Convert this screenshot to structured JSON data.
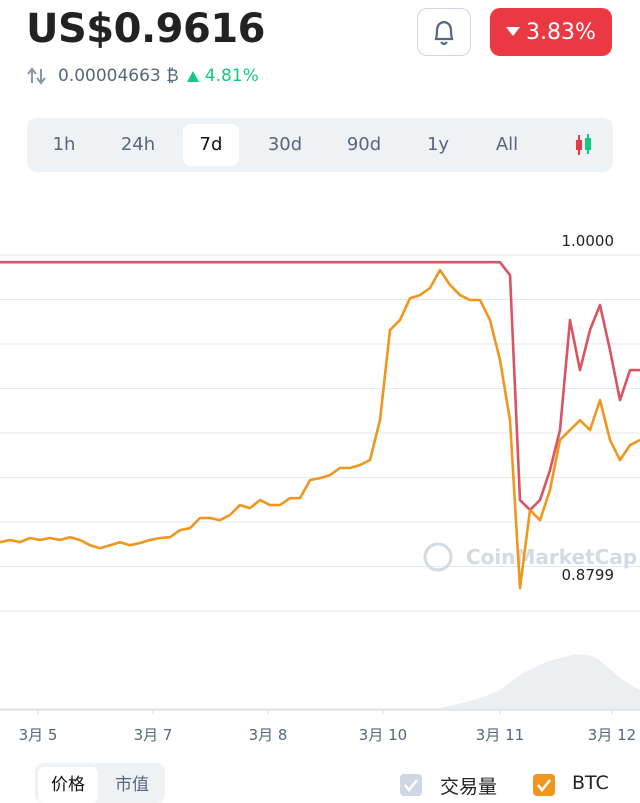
{
  "header": {
    "price": "US$0.9616",
    "btc_price": "0.00004663 ₿",
    "btc_change": "4.81%",
    "usd_change": "3.83%"
  },
  "ranges": [
    "1h",
    "24h",
    "7d",
    "30d",
    "90d",
    "1y",
    "All"
  ],
  "selected_range": 2,
  "bottom_tabs": [
    "价格",
    "市值"
  ],
  "watermark": "CoinMarketCap",
  "chart_data": {
    "type": "line",
    "x": [
      0,
      1,
      2,
      3,
      4,
      5,
      6,
      7,
      8,
      9,
      10,
      11,
      12,
      13,
      14,
      15,
      16,
      17,
      18,
      19,
      20,
      21,
      22,
      23,
      24,
      25,
      26,
      27,
      28,
      29,
      30,
      31,
      32,
      33,
      34,
      35,
      36,
      37,
      38,
      39,
      40,
      41,
      42,
      43,
      44,
      45,
      46,
      47,
      48,
      49,
      50,
      51,
      52,
      53,
      54,
      55,
      56,
      57,
      58,
      59,
      60,
      61,
      62,
      63,
      64
    ],
    "xlim": [
      0,
      64
    ],
    "xticks": [
      {
        "value": 3.8,
        "label": "3月 5"
      },
      {
        "value": 15.3,
        "label": "3月 7"
      },
      {
        "value": 26.8,
        "label": "3月 8"
      },
      {
        "value": 38.3,
        "label": "3月 10"
      },
      {
        "value": 50,
        "label": "3月 11"
      },
      {
        "value": 61.2,
        "label": "3月 12"
      }
    ],
    "ylim": [
      0.861,
      1.0102
    ],
    "yticks": [
      {
        "value": 1.0,
        "label": "1.0000"
      },
      {
        "value": 0.8799,
        "label": "0.8799"
      }
    ],
    "series": [
      {
        "color": "#db5260",
        "values": [
          0.9985,
          0.9985,
          0.9985,
          0.9985,
          0.9985,
          0.9985,
          0.9985,
          0.9985,
          0.9985,
          0.9985,
          0.9985,
          0.9985,
          0.9985,
          0.9985,
          0.9985,
          0.9985,
          0.9985,
          0.9985,
          0.9985,
          0.9985,
          0.9985,
          0.9985,
          0.9985,
          0.9985,
          0.9985,
          0.9985,
          0.9985,
          0.9985,
          0.9985,
          0.9985,
          0.9985,
          0.9985,
          0.9985,
          0.9985,
          0.9985,
          0.9985,
          0.9985,
          0.9985,
          0.9985,
          0.9985,
          0.9985,
          0.9985,
          0.9985,
          0.9985,
          0.9985,
          0.9985,
          0.9985,
          0.9985,
          0.9985,
          0.9985,
          0.9985,
          0.9938,
          0.9119,
          0.9083,
          0.9119,
          0.9228,
          0.9374,
          0.9774,
          0.9592,
          0.9738,
          0.9829,
          0.9665,
          0.9483,
          0.9592,
          0.9592
        ]
      },
      {
        "name": "BTC",
        "color": "#f0961e",
        "values": [
          0.8966,
          0.8974,
          0.8966,
          0.8981,
          0.8974,
          0.8981,
          0.8974,
          0.8984,
          0.8974,
          0.8955,
          0.8944,
          0.8955,
          0.8966,
          0.8955,
          0.8963,
          0.8974,
          0.8981,
          0.8984,
          0.901,
          0.9017,
          0.9054,
          0.9054,
          0.9046,
          0.9065,
          0.9101,
          0.909,
          0.9119,
          0.9101,
          0.9101,
          0.9126,
          0.9126,
          0.9192,
          0.9199,
          0.921,
          0.9236,
          0.9236,
          0.9247,
          0.9265,
          0.941,
          0.9738,
          0.9774,
          0.9854,
          0.9865,
          0.9891,
          0.9956,
          0.9902,
          0.9865,
          0.9847,
          0.9847,
          0.9774,
          0.9629,
          0.941,
          0.8799,
          0.9083,
          0.9046,
          0.9156,
          0.9338,
          0.9374,
          0.941,
          0.9374,
          0.9483,
          0.9338,
          0.9265,
          0.9319,
          0.9338
        ]
      }
    ],
    "volume_label": "交易量"
  }
}
